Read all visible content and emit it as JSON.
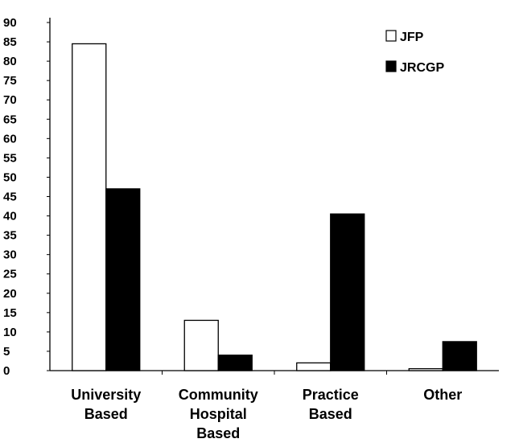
{
  "chart_data": {
    "type": "bar",
    "title": "",
    "xlabel": "",
    "ylabel": "",
    "categories": [
      [
        "University",
        "Based"
      ],
      [
        "Community",
        "Hospital",
        "Based"
      ],
      [
        "Practice",
        "Based"
      ],
      [
        "Other"
      ]
    ],
    "series": [
      {
        "name": "JFP",
        "color": "#ffffff",
        "values": [
          84.5,
          13,
          2,
          0.5
        ]
      },
      {
        "name": "JRCGP",
        "color": "#000000",
        "values": [
          47,
          4,
          40.5,
          7.5
        ]
      }
    ],
    "ylim": [
      0,
      90
    ],
    "yticks": [
      0,
      5,
      10,
      15,
      20,
      25,
      30,
      35,
      40,
      45,
      50,
      55,
      60,
      65,
      70,
      75,
      80,
      85,
      90
    ],
    "grid": false,
    "legend_position": "top-right"
  }
}
